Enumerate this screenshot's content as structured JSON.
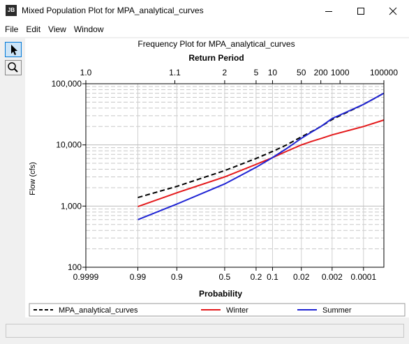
{
  "window": {
    "title": "Mixed Population Plot for MPA_analytical_curves",
    "icon_text": "JB"
  },
  "menu": [
    "File",
    "Edit",
    "View",
    "Window"
  ],
  "tools": [
    {
      "name": "pointer-tool",
      "icon": "arrow-cursor-icon"
    },
    {
      "name": "zoom-tool",
      "icon": "magnifier-icon"
    }
  ],
  "chart_data": {
    "type": "line",
    "title": "Frequency Plot for MPA_analytical_curves",
    "top_axis_label": "Return Period",
    "top_ticks": [
      "1.0",
      "1.1",
      "2",
      "5",
      "10",
      "50",
      "200",
      "1000",
      "100000"
    ],
    "xlabel": "Probability",
    "x_ticks": [
      "0.9999",
      "0.99",
      "0.9",
      "0.5",
      "0.2",
      "0.1",
      "0.02",
      "0.002",
      "0.0001"
    ],
    "ylabel": "Flow (cfs)",
    "y_ticks": [
      "100",
      "1,000",
      "10,000",
      "100,000"
    ],
    "y_scale": "log",
    "ylim": [
      100,
      100000
    ],
    "grid": true,
    "legend_position": "bottom",
    "series": [
      {
        "name": "MPA_analytical_curves",
        "color": "#000000",
        "dash": "dashed",
        "x": [
          0.99,
          0.9,
          0.5,
          0.2,
          0.1,
          0.05,
          0.02,
          0.01,
          0.005,
          0.002,
          0.0001,
          1e-05
        ],
        "y": [
          1380,
          2100,
          3800,
          6000,
          7800,
          9900,
          13500,
          16500,
          20000,
          26000,
          46000,
          70000
        ]
      },
      {
        "name": "Winter",
        "color": "#e41a1c",
        "dash": "solid",
        "x": [
          0.99,
          0.9,
          0.5,
          0.2,
          0.1,
          0.05,
          0.02,
          0.01,
          0.005,
          0.002,
          0.0001,
          1e-05
        ],
        "y": [
          980,
          1650,
          3000,
          4800,
          6200,
          7800,
          10000,
          11400,
          12700,
          14600,
          20000,
          25500
        ]
      },
      {
        "name": "Summer",
        "color": "#1f24d4",
        "dash": "solid",
        "x": [
          0.99,
          0.9,
          0.5,
          0.2,
          0.1,
          0.05,
          0.02,
          0.01,
          0.005,
          0.002,
          0.0001,
          1e-05
        ],
        "y": [
          600,
          1080,
          2300,
          4300,
          6200,
          8600,
          12800,
          16200,
          20000,
          27000,
          46000,
          70000
        ]
      }
    ]
  }
}
